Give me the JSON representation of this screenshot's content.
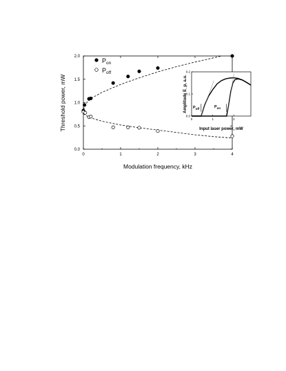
{
  "chart_data": [
    {
      "type": "scatter",
      "xlabel": "Modulation frequency, kHz",
      "ylabel": "Threshold power, mW",
      "xlim": [
        0,
        4.0
      ],
      "ylim": [
        0,
        2.0
      ],
      "xticks": [
        "0",
        "1",
        "2",
        "3",
        "4"
      ],
      "yticks": [
        "0.0",
        "0.5",
        "1.0",
        "1.5",
        "2.0"
      ],
      "legend": {
        "placement": "top-left",
        "entries": [
          "P_on",
          "P_off"
        ]
      },
      "series": [
        {
          "name": "P_on",
          "marker": "filled-circle",
          "points": [
            [
              0.0,
              0.83
            ],
            [
              0.01,
              0.81
            ],
            [
              0.03,
              0.95
            ],
            [
              0.15,
              1.08
            ],
            [
              0.2,
              1.09
            ],
            [
              0.8,
              1.42
            ],
            [
              1.2,
              1.56
            ],
            [
              1.5,
              1.67
            ],
            [
              2.0,
              1.74
            ],
            [
              4.0,
              2.0
            ]
          ]
        },
        {
          "name": "P_off",
          "marker": "open-circle",
          "points": [
            [
              0.0,
              0.8
            ],
            [
              0.05,
              0.78
            ],
            [
              0.15,
              0.69
            ],
            [
              0.2,
              0.7
            ],
            [
              0.8,
              0.47
            ],
            [
              1.2,
              0.47
            ],
            [
              1.5,
              0.46
            ],
            [
              2.0,
              0.39
            ],
            [
              4.0,
              0.28
            ]
          ]
        }
      ],
      "fits": [
        {
          "series": "P_on",
          "style": "dashed",
          "points": [
            [
              0.0,
              0.85
            ],
            [
              0.1,
              1.01
            ],
            [
              0.25,
              1.11
            ],
            [
              0.5,
              1.22
            ],
            [
              1.0,
              1.39
            ],
            [
              1.5,
              1.53
            ],
            [
              2.0,
              1.66
            ],
            [
              2.5,
              1.77
            ],
            [
              3.0,
              1.87
            ],
            [
              3.5,
              1.96
            ],
            [
              3.72,
              2.0
            ]
          ]
        },
        {
          "series": "P_off",
          "style": "dashed",
          "points": [
            [
              0.0,
              0.76
            ],
            [
              0.1,
              0.71
            ],
            [
              0.25,
              0.66
            ],
            [
              0.5,
              0.6
            ],
            [
              1.0,
              0.52
            ],
            [
              1.5,
              0.46
            ],
            [
              2.0,
              0.41
            ],
            [
              2.5,
              0.36
            ],
            [
              3.0,
              0.31
            ],
            [
              3.5,
              0.27
            ],
            [
              4.0,
              0.24
            ]
          ]
        }
      ]
    },
    {
      "type": "line",
      "xlabel": "Input laser power, mW",
      "ylabel": "Amplitude E_p, a.u.",
      "xlim": [
        0,
        2.8
      ],
      "ylim": [
        0,
        0.2
      ],
      "xticks": [
        "0",
        "1",
        "2"
      ],
      "yticks": [
        "0.0",
        "0.1",
        "0.2"
      ],
      "annotations": [
        "P_off",
        "P_on"
      ],
      "series": [
        {
          "name": "P_off",
          "points": [
            [
              0.0,
              0.0
            ],
            [
              0.45,
              0.0
            ],
            [
              0.52,
              0.02
            ],
            [
              0.62,
              0.05
            ],
            [
              0.8,
              0.09
            ],
            [
              1.0,
              0.12
            ],
            [
              1.2,
              0.145
            ],
            [
              1.4,
              0.16
            ],
            [
              1.6,
              0.168
            ],
            [
              1.8,
              0.172
            ],
            [
              2.0,
              0.173
            ],
            [
              2.2,
              0.17
            ],
            [
              2.4,
              0.163
            ],
            [
              2.6,
              0.152
            ],
            [
              2.8,
              0.14
            ]
          ]
        },
        {
          "name": "P_on",
          "points": [
            [
              0.0,
              0.0
            ],
            [
              1.65,
              0.0
            ],
            [
              1.75,
              0.05
            ],
            [
              1.85,
              0.11
            ],
            [
              1.95,
              0.15
            ],
            [
              2.05,
              0.165
            ],
            [
              2.2,
              0.168
            ],
            [
              2.4,
              0.163
            ],
            [
              2.6,
              0.152
            ],
            [
              2.8,
              0.14
            ]
          ]
        }
      ]
    }
  ]
}
